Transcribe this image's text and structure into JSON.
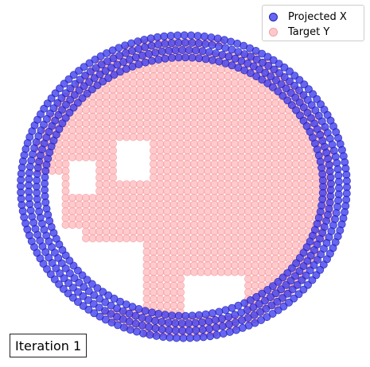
{
  "chart_data": {
    "type": "scatter",
    "title": "",
    "xlabel": "",
    "ylabel": "",
    "xlim": [
      0,
      465
    ],
    "ylim": [
      0,
      462
    ],
    "grid": false,
    "axes_visible": false,
    "legend_placement": "top-right",
    "annotation": "Iteration 1",
    "series": [
      {
        "name": "Projected X",
        "color": "#3333ee",
        "opacity": 0.75,
        "shape": "ring",
        "center": [
          231,
          235
        ],
        "radius_outer": 205,
        "radius_inner": 175,
        "spacing": 8.5
      },
      {
        "name": "Target Y",
        "color": "#ffb8bb",
        "opacity": 0.75,
        "shape": "irregular-disc",
        "center": [
          230,
          235
        ],
        "radius": 190,
        "holes": [
          "left-side",
          "left-mid",
          "bottom-middle",
          "lower-left"
        ],
        "spacing": 8.5
      }
    ]
  }
}
